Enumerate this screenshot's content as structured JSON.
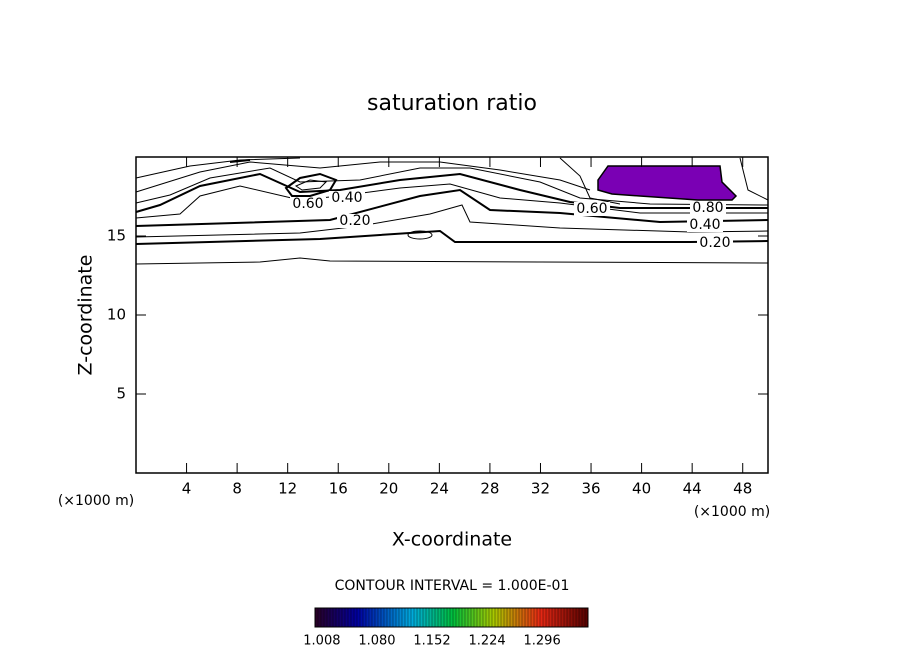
{
  "chart_data": {
    "type": "contour",
    "title": "saturation ratio",
    "xlabel": "X-coordinate",
    "ylabel": "Z-coordinate",
    "y_unit": "(×1000 m)",
    "x_unit": "(×1000 m)",
    "xlim": [
      0,
      50
    ],
    "xticks": [
      4,
      8,
      12,
      16,
      20,
      24,
      28,
      32,
      36,
      40,
      44,
      48
    ],
    "ylim": [
      0,
      20
    ],
    "yticks": [
      5,
      10,
      15
    ],
    "levels": [
      {
        "value": 0.2,
        "label": "0.20"
      },
      {
        "value": 0.4,
        "label": "0.40"
      },
      {
        "value": 0.6,
        "label": "0.60"
      },
      {
        "value": 0.8,
        "label": "0.80"
      }
    ],
    "shade_color": "#7a00b4",
    "contour_interval": "CONTOUR INTERVAL = 1.000E-01",
    "colorbar": {
      "clim": [
        0.999,
        1.356
      ],
      "ticks": [
        {
          "value": 1.008,
          "label": "1.008"
        },
        {
          "value": 1.08,
          "label": "1.080"
        },
        {
          "value": 1.152,
          "label": "1.152"
        },
        {
          "value": 1.224,
          "label": "1.224"
        },
        {
          "value": 1.296,
          "label": "1.296"
        }
      ]
    }
  }
}
